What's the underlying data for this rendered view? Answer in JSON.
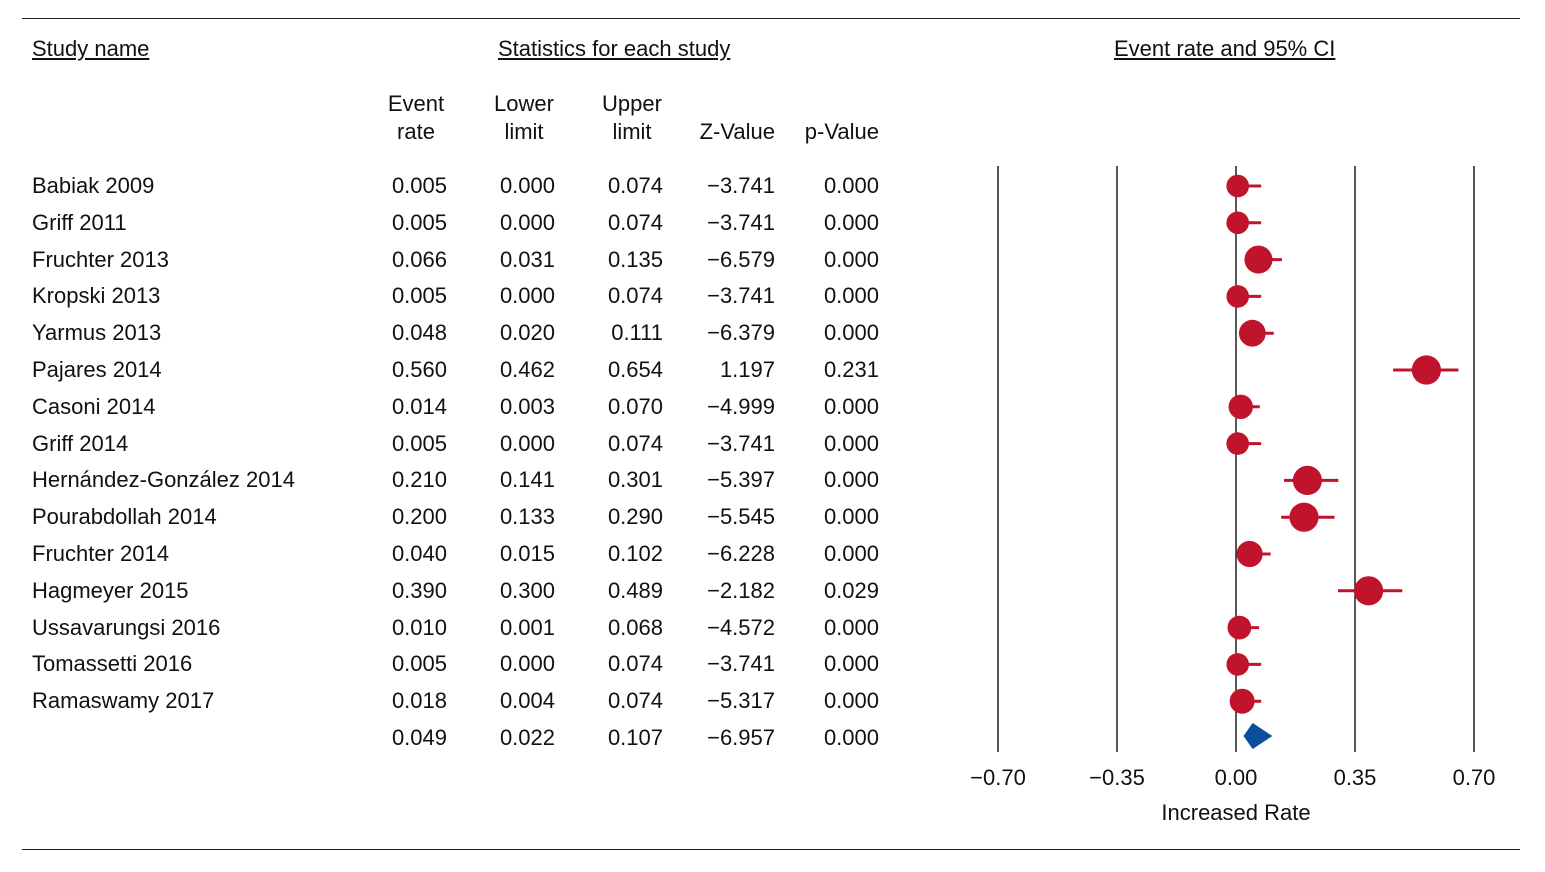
{
  "headers": {
    "study_name": "Study name",
    "statistics": "Statistics for each study",
    "plot": "Event rate and 95% CI"
  },
  "columns": [
    {
      "line1": "Event",
      "line2": "rate"
    },
    {
      "line1": "Lower",
      "line2": "limit"
    },
    {
      "line1": "Upper",
      "line2": "limit"
    },
    {
      "line1": "",
      "line2": "Z-Value"
    },
    {
      "line1": "",
      "line2": "p-Value"
    }
  ],
  "rows": [
    {
      "study": "Babiak 2009",
      "event_rate": "0.005",
      "lower": "0.000",
      "upper": "0.074",
      "z": "−3.741",
      "p": "0.000"
    },
    {
      "study": "Griff 2011",
      "event_rate": "0.005",
      "lower": "0.000",
      "upper": "0.074",
      "z": "−3.741",
      "p": "0.000"
    },
    {
      "study": "Fruchter 2013",
      "event_rate": "0.066",
      "lower": "0.031",
      "upper": "0.135",
      "z": "−6.579",
      "p": "0.000"
    },
    {
      "study": "Kropski 2013",
      "event_rate": "0.005",
      "lower": "0.000",
      "upper": "0.074",
      "z": "−3.741",
      "p": "0.000"
    },
    {
      "study": "Yarmus 2013",
      "event_rate": "0.048",
      "lower": "0.020",
      "upper": "0.111",
      "z": "−6.379",
      "p": "0.000"
    },
    {
      "study": "Pajares 2014",
      "event_rate": "0.560",
      "lower": "0.462",
      "upper": "0.654",
      "z": "1.197",
      "p": "0.231"
    },
    {
      "study": "Casoni 2014",
      "event_rate": "0.014",
      "lower": "0.003",
      "upper": "0.070",
      "z": "−4.999",
      "p": "0.000"
    },
    {
      "study": "Griff 2014",
      "event_rate": "0.005",
      "lower": "0.000",
      "upper": "0.074",
      "z": "−3.741",
      "p": "0.000"
    },
    {
      "study": "Hernández-González 2014",
      "event_rate": "0.210",
      "lower": "0.141",
      "upper": "0.301",
      "z": "−5.397",
      "p": "0.000"
    },
    {
      "study": "Pourabdollah 2014",
      "event_rate": "0.200",
      "lower": "0.133",
      "upper": "0.290",
      "z": "−5.545",
      "p": "0.000"
    },
    {
      "study": "Fruchter 2014",
      "event_rate": "0.040",
      "lower": "0.015",
      "upper": "0.102",
      "z": "−6.228",
      "p": "0.000"
    },
    {
      "study": "Hagmeyer 2015",
      "event_rate": "0.390",
      "lower": "0.300",
      "upper": "0.489",
      "z": "−2.182",
      "p": "0.029"
    },
    {
      "study": "Ussavarungsi 2016",
      "event_rate": "0.010",
      "lower": "0.001",
      "upper": "0.068",
      "z": "−4.572",
      "p": "0.000"
    },
    {
      "study": "Tomassetti 2016",
      "event_rate": "0.005",
      "lower": "0.000",
      "upper": "0.074",
      "z": "−3.741",
      "p": "0.000"
    },
    {
      "study": "Ramaswamy 2017",
      "event_rate": "0.018",
      "lower": "0.004",
      "upper": "0.074",
      "z": "−5.317",
      "p": "0.000"
    }
  ],
  "pooled": {
    "study": "",
    "event_rate": "0.049",
    "lower": "0.022",
    "upper": "0.107",
    "z": "−6.957",
    "p": "0.000"
  },
  "chart_data": {
    "type": "forest",
    "xlabel": "Increased Rate",
    "xlim": [
      -0.7,
      0.7
    ],
    "ticks": [
      -0.7,
      -0.35,
      0.0,
      0.35,
      0.7
    ],
    "tick_labels": [
      "−0.70",
      "−0.35",
      "0.00",
      "0.35",
      "0.70"
    ],
    "grid": true,
    "studies": [
      {
        "name": "Babiak 2009",
        "estimate": 0.005,
        "lower": 0.0,
        "upper": 0.074,
        "weight": 0.55
      },
      {
        "name": "Griff 2011",
        "estimate": 0.005,
        "lower": 0.0,
        "upper": 0.074,
        "weight": 0.55
      },
      {
        "name": "Fruchter 2013",
        "estimate": 0.066,
        "lower": 0.031,
        "upper": 0.135,
        "weight": 1.0
      },
      {
        "name": "Kropski 2013",
        "estimate": 0.005,
        "lower": 0.0,
        "upper": 0.074,
        "weight": 0.55
      },
      {
        "name": "Yarmus 2013",
        "estimate": 0.048,
        "lower": 0.02,
        "upper": 0.111,
        "weight": 0.9
      },
      {
        "name": "Pajares 2014",
        "estimate": 0.56,
        "lower": 0.462,
        "upper": 0.654,
        "weight": 1.1
      },
      {
        "name": "Casoni 2014",
        "estimate": 0.014,
        "lower": 0.003,
        "upper": 0.07,
        "weight": 0.7
      },
      {
        "name": "Griff 2014",
        "estimate": 0.005,
        "lower": 0.0,
        "upper": 0.074,
        "weight": 0.55
      },
      {
        "name": "Hernández-González 2014",
        "estimate": 0.21,
        "lower": 0.141,
        "upper": 0.301,
        "weight": 1.1
      },
      {
        "name": "Pourabdollah 2014",
        "estimate": 0.2,
        "lower": 0.133,
        "upper": 0.29,
        "weight": 1.1
      },
      {
        "name": "Fruchter 2014",
        "estimate": 0.04,
        "lower": 0.015,
        "upper": 0.102,
        "weight": 0.85
      },
      {
        "name": "Hagmeyer 2015",
        "estimate": 0.39,
        "lower": 0.3,
        "upper": 0.489,
        "weight": 1.1
      },
      {
        "name": "Ussavarungsi 2016",
        "estimate": 0.01,
        "lower": 0.001,
        "upper": 0.068,
        "weight": 0.65
      },
      {
        "name": "Tomassetti 2016",
        "estimate": 0.005,
        "lower": 0.0,
        "upper": 0.074,
        "weight": 0.55
      },
      {
        "name": "Ramaswamy 2017",
        "estimate": 0.018,
        "lower": 0.004,
        "upper": 0.074,
        "weight": 0.75
      }
    ],
    "summary": {
      "estimate": 0.049,
      "lower": 0.022,
      "upper": 0.107
    },
    "colors": {
      "study": "#c0142c",
      "summary": "#0b4c9c",
      "lines": "#111111"
    }
  }
}
